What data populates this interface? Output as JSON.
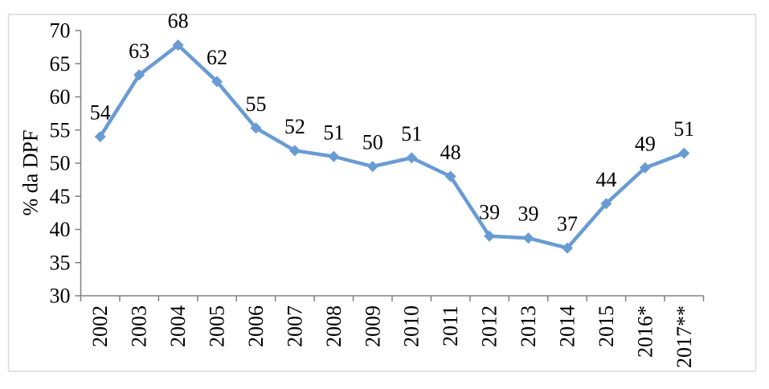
{
  "chart": {
    "background": "#ffffff",
    "border_color": "#d9d9d9",
    "axis_color": "#808080",
    "text_color": "#000000"
  },
  "chart_data": {
    "type": "line",
    "title": "",
    "xlabel": "",
    "ylabel": "% da DPF",
    "legend": "none",
    "grid": false,
    "series_color": "#699bd3",
    "marker": "diamond",
    "data_labels_position": "above",
    "categories": [
      "2002",
      "2003",
      "2004",
      "2005",
      "2006",
      "2007",
      "2008",
      "2009",
      "2010",
      "2011",
      "2012",
      "2013",
      "2014",
      "2015",
      "2016*",
      "2017**"
    ],
    "values": [
      54,
      63,
      68,
      62,
      55,
      52,
      51,
      50,
      51,
      48,
      39,
      39,
      37,
      44,
      49,
      51
    ],
    "plot_values": [
      54.0,
      63.3,
      67.8,
      62.3,
      55.3,
      51.9,
      51.0,
      49.5,
      50.8,
      48.0,
      39.0,
      38.7,
      37.2,
      43.9,
      49.3,
      51.5
    ],
    "ylim": [
      30,
      70
    ],
    "ytick_step": 5,
    "yticks": [
      30,
      35,
      40,
      45,
      50,
      55,
      60,
      65,
      70
    ]
  }
}
